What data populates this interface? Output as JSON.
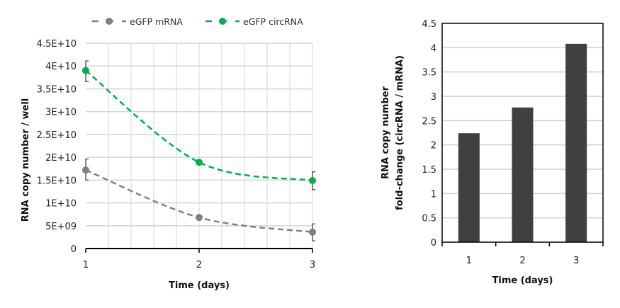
{
  "chart_data": [
    {
      "type": "line",
      "title": "",
      "xlabel": "Time (days)",
      "ylabel": "RNA copy number / well",
      "x": [
        1,
        2,
        3
      ],
      "xticks": [
        "1",
        "2",
        "3"
      ],
      "xlim": [
        1,
        3
      ],
      "ylim": [
        0,
        45000000000
      ],
      "yticks": [
        "0",
        "5E+09",
        "1E+10",
        "1.5E+10",
        "2E+10",
        "2.5E+10",
        "3E+10",
        "3.5E+10",
        "4E+10",
        "4.5E+10"
      ],
      "grid": true,
      "legend": "top",
      "series": [
        {
          "name": "eGFP mRNA",
          "color": "#808080",
          "values": [
            17200000000,
            6800000000,
            3600000000
          ],
          "err_low": [
            15000000000,
            6600000000,
            1700000000
          ],
          "err_high": [
            19600000000,
            7000000000,
            5400000000
          ]
        },
        {
          "name": "eGFP circRNA",
          "color": "#00b050",
          "values": [
            39000000000,
            18900000000,
            14900000000
          ],
          "err_low": [
            36600000000,
            18700000000,
            12900000000
          ],
          "err_high": [
            41100000000,
            19100000000,
            16800000000
          ]
        }
      ]
    },
    {
      "type": "bar",
      "title": "",
      "xlabel": "Time (days)",
      "ylabel": [
        "RNA copy number",
        "fold-change (circRNA / mRNA)"
      ],
      "categories": [
        "1",
        "2",
        "3"
      ],
      "values": [
        2.24,
        2.77,
        4.08
      ],
      "color": "#404040",
      "ylim": [
        0,
        4.5
      ],
      "yticks": [
        "0",
        "0.5",
        "1",
        "1.5",
        "2",
        "2.5",
        "3",
        "3.5",
        "4",
        "4.5"
      ],
      "grid": true
    }
  ]
}
